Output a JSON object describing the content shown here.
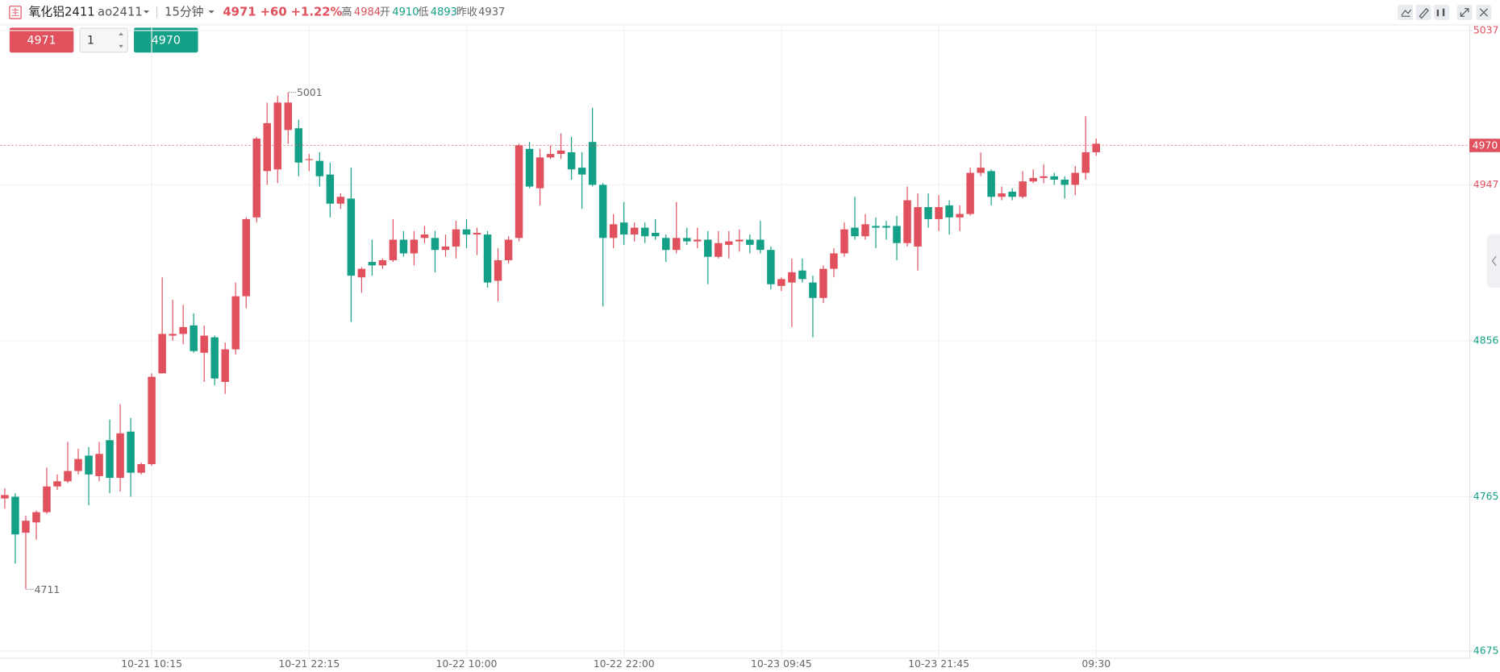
{
  "header": {
    "icon": "主",
    "name": "氧化铝2411",
    "code": "ao2411",
    "period": "15分钟",
    "last": "4971",
    "change": "+60",
    "change_pct": "+1.22%",
    "high_label": "高",
    "high": 4984,
    "open_label": "开",
    "open": 4910,
    "low_label": "低",
    "low": 4893,
    "prev_close_label": "昨收",
    "prev_close": 4937
  },
  "order": {
    "sell": "4971",
    "qty": "1",
    "buy": "4970"
  },
  "chart_data": {
    "type": "candlestick",
    "up_color": "#e0505d",
    "down_color": "#13a086",
    "grid": true,
    "categories": [
      null,
      null,
      null,
      null,
      null,
      null,
      null,
      null,
      null,
      null,
      null,
      null,
      null,
      null,
      "10-21 10:15",
      null,
      null,
      null,
      null,
      null,
      null,
      null,
      null,
      null,
      null,
      null,
      null,
      null,
      null,
      "10-21 22:15",
      null,
      null,
      null,
      null,
      null,
      null,
      null,
      null,
      null,
      null,
      null,
      null,
      null,
      null,
      "10-22 10:00",
      null,
      null,
      null,
      null,
      null,
      null,
      null,
      null,
      null,
      null,
      null,
      null,
      null,
      null,
      "10-22 22:00",
      null,
      null,
      null,
      null,
      null,
      null,
      null,
      null,
      null,
      null,
      null,
      null,
      null,
      null,
      "10-23 09:45",
      null,
      null,
      null,
      null,
      null,
      null,
      null,
      null,
      null,
      null,
      null,
      null,
      null,
      null,
      "10-23 21:45",
      null,
      null,
      null,
      null,
      null,
      null,
      null,
      null,
      null,
      null,
      null,
      null,
      null,
      null,
      "09:30"
    ],
    "open": [
      4764,
      4765,
      4744,
      4750,
      4756,
      4771,
      4774,
      4780,
      4789,
      4777,
      4798,
      4776,
      4803,
      4779,
      4784,
      4837,
      4859,
      4860,
      4865,
      4849,
      4858,
      4832,
      4851,
      4882,
      4928,
      4955,
      4956,
      4979,
      4980,
      4962,
      4961,
      4953,
      4936,
      4939,
      4893,
      4902,
      4900,
      4903,
      4915,
      4907,
      4916,
      4916,
      4909,
      4911,
      4921,
      4918,
      4918,
      4891,
      4903,
      4916,
      4968,
      4945,
      4963,
      4965,
      4966,
      4957,
      4972,
      4947,
      4916,
      4925,
      4918,
      4922,
      4919,
      4916,
      4909,
      4916,
      4914,
      4915,
      4905,
      4912,
      4914,
      4915,
      4915,
      4909,
      4888,
      4890,
      4897,
      4890,
      4881,
      4898,
      4907,
      4922,
      4917,
      4923,
      4923,
      4923,
      4913,
      4911,
      4934,
      4927,
      4935,
      4928,
      4930,
      4954,
      4955,
      4940,
      4943,
      4940,
      4949,
      4951,
      4952,
      4950,
      4947,
      4954,
      4966
    ],
    "high": [
      4770,
      4767,
      4754,
      4757,
      4782,
      4778,
      4797,
      4793,
      4794,
      4797,
      4810,
      4819,
      4811,
      4785,
      4837,
      4893,
      4880,
      4877,
      4872,
      4865,
      4859,
      4855,
      4890,
      4928,
      4975,
      4995,
      4999,
      5001,
      4985,
      4965,
      4966,
      4960,
      4942,
      4957,
      4899,
      4915,
      4904,
      4927,
      4920,
      4920,
      4923,
      4920,
      4918,
      4926,
      4927,
      4922,
      4920,
      4910,
      4917,
      4971,
      4972,
      4968,
      4970,
      4977,
      4975,
      4966,
      4992,
      4948,
      4930,
      4937,
      4925,
      4925,
      4927,
      4918,
      4937,
      4922,
      4922,
      4920,
      4920,
      4920,
      4921,
      4918,
      4926,
      4911,
      4893,
      4904,
      4904,
      4894,
      4900,
      4910,
      4925,
      4940,
      4930,
      4928,
      4926,
      4929,
      4946,
      4942,
      4942,
      4941,
      4938,
      4935,
      4957,
      4966,
      4956,
      4946,
      4945,
      4955,
      4956,
      4959,
      4954,
      4952,
      4958,
      4987,
      4974
    ],
    "low": [
      4758,
      4726,
      4711,
      4740,
      4755,
      4769,
      4773,
      4778,
      4760,
      4774,
      4767,
      4768,
      4765,
      4778,
      4783,
      4837,
      4856,
      4854,
      4849,
      4832,
      4830,
      4825,
      4848,
      4875,
      4925,
      4947,
      4948,
      4971,
      4952,
      4955,
      4946,
      4928,
      4933,
      4867,
      4884,
      4894,
      4898,
      4902,
      4905,
      4900,
      4913,
      4896,
      4905,
      4904,
      4910,
      4906,
      4887,
      4879,
      4901,
      4914,
      4945,
      4935,
      4962,
      4962,
      4950,
      4933,
      4946,
      4876,
      4910,
      4912,
      4914,
      4913,
      4915,
      4902,
      4907,
      4912,
      4910,
      4889,
      4904,
      4904,
      4908,
      4907,
      4907,
      4886,
      4885,
      4864,
      4890,
      4858,
      4878,
      4893,
      4905,
      4915,
      4915,
      4910,
      4915,
      4903,
      4911,
      4897,
      4922,
      4920,
      4918,
      4920,
      4929,
      4952,
      4935,
      4938,
      4938,
      4939,
      4948,
      4948,
      4947,
      4939,
      4941,
      4950,
      4964
    ],
    "close": [
      4766,
      4743,
      4751,
      4756,
      4771,
      4774,
      4780,
      4787,
      4778,
      4790,
      4776,
      4802,
      4779,
      4784,
      4835,
      4860,
      4860,
      4864,
      4850,
      4859,
      4834,
      4851,
      4882,
      4927,
      4974,
      4983,
      4995,
      4995,
      4960,
      4962,
      4952,
      4936,
      4940,
      4894,
      4898,
      4900,
      4903,
      4915,
      4907,
      4915,
      4918,
      4909,
      4911,
      4921,
      4918,
      4919,
      4890,
      4903,
      4915,
      4970,
      4946,
      4963,
      4965,
      4967,
      4956,
      4953,
      4947,
      4916,
      4924,
      4918,
      4922,
      4917,
      4917,
      4909,
      4916,
      4914,
      4915,
      4905,
      4913,
      4914,
      4915,
      4912,
      4909,
      4889,
      4892,
      4896,
      4892,
      4881,
      4898,
      4907,
      4921,
      4917,
      4924,
      4922,
      4922,
      4913,
      4938,
      4934,
      4927,
      4934,
      4928,
      4930,
      4954,
      4957,
      4940,
      4942,
      4940,
      4949,
      4951,
      4952,
      4950,
      4947,
      4954,
      4966,
      4971
    ],
    "ylim": [
      4675,
      5037
    ],
    "yticks": [
      5037,
      4947,
      4856,
      4765,
      4675
    ],
    "last_price": 4970
  }
}
